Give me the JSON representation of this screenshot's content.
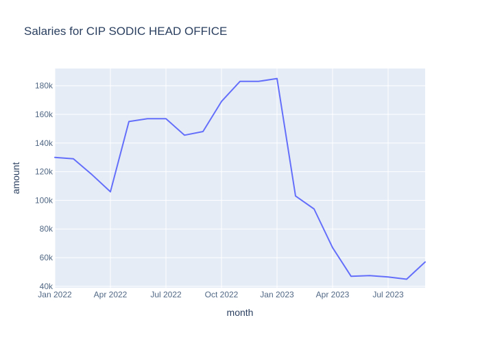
{
  "chart_data": {
    "type": "line",
    "title": "Salaries for CIP SODIC HEAD OFFICE",
    "xlabel": "month",
    "ylabel": "amount",
    "x": [
      "2022-01",
      "2022-02",
      "2022-03",
      "2022-04",
      "2022-05",
      "2022-06",
      "2022-07",
      "2022-08",
      "2022-09",
      "2022-10",
      "2022-11",
      "2022-12",
      "2023-01",
      "2023-02",
      "2023-03",
      "2023-04",
      "2023-05",
      "2023-06",
      "2023-07",
      "2023-08",
      "2023-09"
    ],
    "series": [
      {
        "values": [
          130000,
          129000,
          118000,
          106000,
          155000,
          157000,
          157000,
          145500,
          148000,
          169000,
          183000,
          183000,
          185000,
          103000,
          94000,
          67000,
          47000,
          47500,
          46500,
          45000,
          57000
        ]
      }
    ],
    "xlim": [
      "2022-01",
      "2023-09"
    ],
    "ylim": [
      39000,
      192000
    ],
    "x_ticks": [
      {
        "value": "2022-01",
        "label": "Jan 2022"
      },
      {
        "value": "2022-04",
        "label": "Apr 2022"
      },
      {
        "value": "2022-07",
        "label": "Jul 2022"
      },
      {
        "value": "2022-10",
        "label": "Oct 2022"
      },
      {
        "value": "2023-01",
        "label": "Jan 2023"
      },
      {
        "value": "2023-04",
        "label": "Apr 2023"
      },
      {
        "value": "2023-07",
        "label": "Jul 2023"
      }
    ],
    "y_ticks": [
      {
        "value": 40000,
        "label": "40k"
      },
      {
        "value": 60000,
        "label": "60k"
      },
      {
        "value": 80000,
        "label": "80k"
      },
      {
        "value": 100000,
        "label": "100k"
      },
      {
        "value": 120000,
        "label": "120k"
      },
      {
        "value": 140000,
        "label": "140k"
      },
      {
        "value": 160000,
        "label": "160k"
      },
      {
        "value": 180000,
        "label": "180k"
      }
    ],
    "grid": true,
    "legend": false,
    "colors": {
      "line": "#636efa",
      "plot_bg": "#e5ecf6",
      "grid": "#ffffff",
      "text": "#2a3f5f",
      "tick_text": "#506784"
    }
  }
}
